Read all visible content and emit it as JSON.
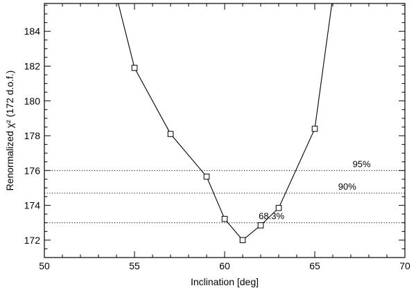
{
  "chart_data": {
    "type": "line",
    "xlabel": "Inclination [deg]",
    "ylabel": "Renormalized χ² (172 d.o.f.)",
    "xlim": [
      50,
      70
    ],
    "ylim": [
      171,
      185.6
    ],
    "xticks": [
      50,
      55,
      60,
      65,
      70
    ],
    "yticks": [
      172,
      174,
      176,
      178,
      180,
      182,
      184
    ],
    "grid": false,
    "series": [
      {
        "marker": "square",
        "x": [
          55,
          57,
          59,
          60,
          61,
          62,
          63,
          65
        ],
        "y": [
          181.9,
          178.1,
          175.65,
          173.22,
          172.0,
          172.85,
          173.85,
          178.4
        ]
      }
    ],
    "curve_extension": {
      "left": {
        "x": 54.1,
        "y": 185.6
      },
      "right": {
        "x": 65.95,
        "y": 185.6
      }
    },
    "confidence_levels": [
      {
        "label": "95%",
        "y": 176.0,
        "label_x": 67.6
      },
      {
        "label": "90%",
        "y": 174.7,
        "label_x": 66.8
      },
      {
        "label": "68.3%",
        "y": 173.0,
        "label_x": 62.6
      }
    ]
  }
}
